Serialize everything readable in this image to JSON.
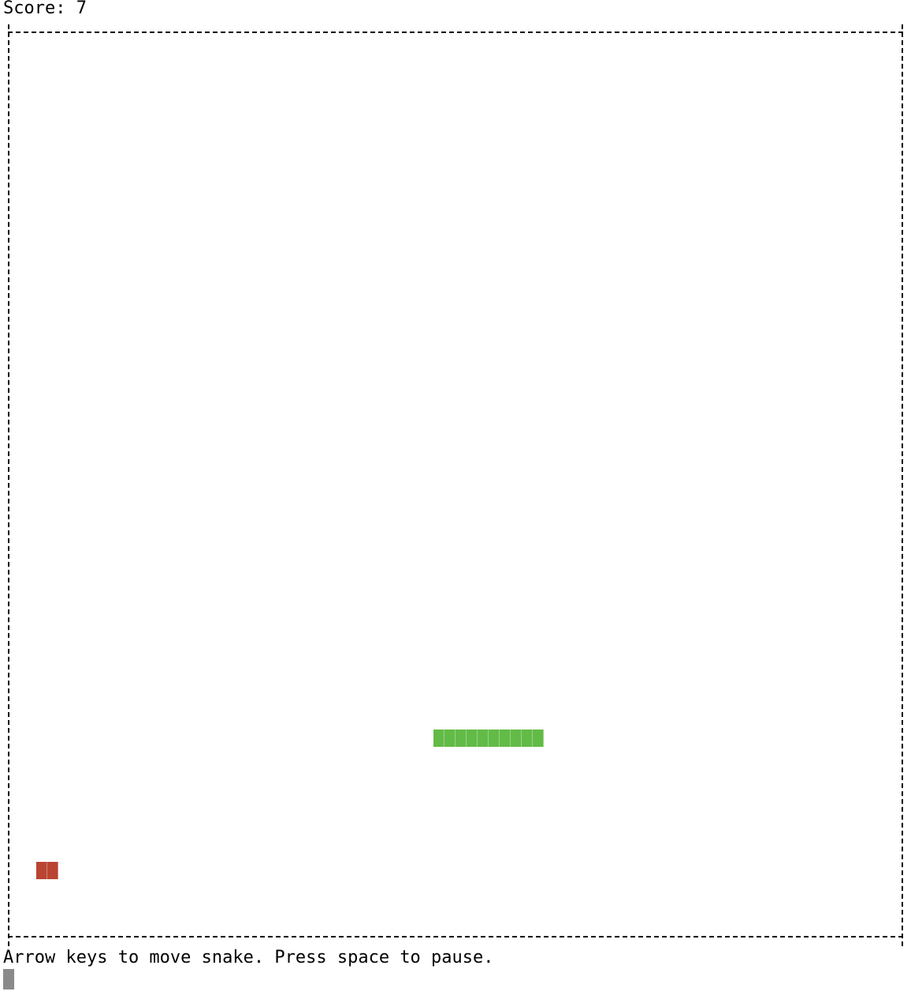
{
  "status": {
    "score_label": "Score: 7",
    "help_text": "Arrow keys to move snake. Press space to pause."
  },
  "game": {
    "score": 7,
    "snake_color": "#62bb47",
    "food_color": "#b94431",
    "cursor_color": "#8a8a8a"
  }
}
